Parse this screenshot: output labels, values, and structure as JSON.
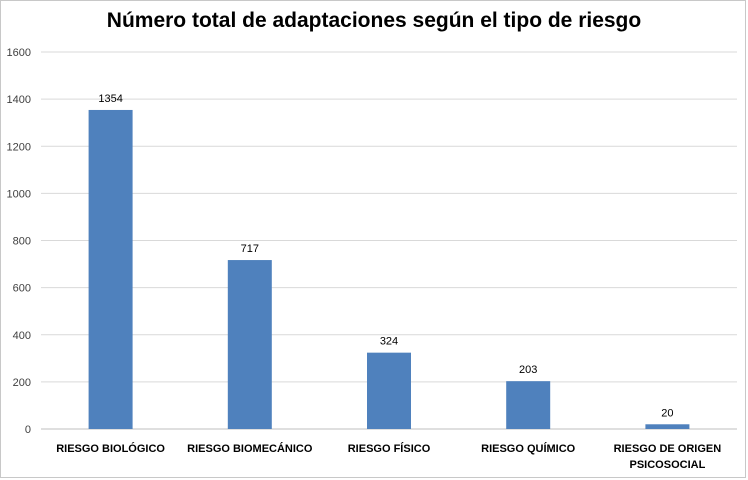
{
  "chart_data": {
    "type": "bar",
    "title": "Número total de adaptaciones según el tipo de riesgo",
    "categories": [
      "RIESGO BIOLÓGICO",
      "RIESGO BIOMECÁNICO",
      "RIESGO FÍSICO",
      "RIESGO QUÍMICO",
      "RIESGO DE ORIGEN PSICOSOCIAL"
    ],
    "values": [
      1354,
      717,
      324,
      203,
      20
    ],
    "data_labels": [
      "1354",
      "717",
      "324",
      "203",
      "20"
    ],
    "ylim": [
      0,
      1600
    ],
    "yticks": [
      0,
      200,
      400,
      600,
      800,
      1000,
      1200,
      1400,
      1600
    ],
    "grid": true,
    "bar_color": "#4f81bd",
    "xlabel": "",
    "ylabel": ""
  }
}
